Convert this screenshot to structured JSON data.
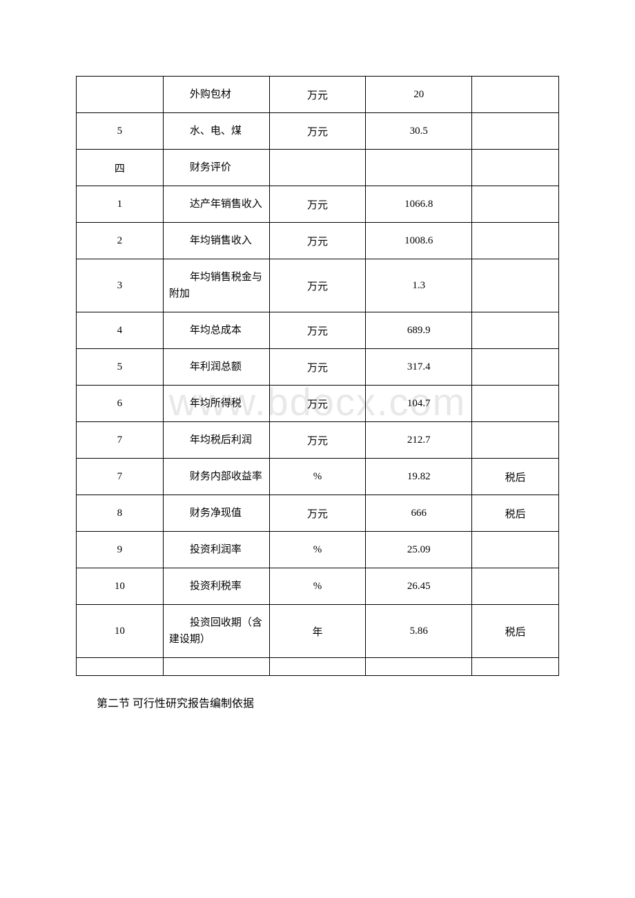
{
  "watermark": "www.bdocx.com",
  "table": {
    "rows": [
      {
        "c0": "",
        "c1": "外购包材",
        "c2": "万元",
        "c3": "20",
        "c4": ""
      },
      {
        "c0": "5",
        "c1": "水、电、煤",
        "c2": "万元",
        "c3": "30.5",
        "c4": ""
      },
      {
        "c0": "四",
        "c1": "财务评价",
        "c2": "",
        "c3": "",
        "c4": ""
      },
      {
        "c0": "1",
        "c1": "达产年销售收入",
        "c2": "万元",
        "c3": "1066.8",
        "c4": ""
      },
      {
        "c0": "2",
        "c1": "年均销售收入",
        "c2": "万元",
        "c3": "1008.6",
        "c4": ""
      },
      {
        "c0": "3",
        "c1": "年均销售税金与附加",
        "c2": "万元",
        "c3": "1.3",
        "c4": ""
      },
      {
        "c0": "4",
        "c1": "年均总成本",
        "c2": "万元",
        "c3": "689.9",
        "c4": ""
      },
      {
        "c0": "5",
        "c1": "年利润总额",
        "c2": "万元",
        "c3": "317.4",
        "c4": ""
      },
      {
        "c0": "6",
        "c1": "年均所得税",
        "c2": "万元",
        "c3": "104.7",
        "c4": ""
      },
      {
        "c0": "7",
        "c1": "年均税后利润",
        "c2": "万元",
        "c3": "212.7",
        "c4": ""
      },
      {
        "c0": "7",
        "c1": "财务内部收益率",
        "c2": "%",
        "c3": "19.82",
        "c4": "税后"
      },
      {
        "c0": "8",
        "c1": "财务净现值",
        "c2": "万元",
        "c3": "666",
        "c4": "税后"
      },
      {
        "c0": "9",
        "c1": "投资利润率",
        "c2": "%",
        "c3": "25.09",
        "c4": ""
      },
      {
        "c0": "10",
        "c1": "投资利税率",
        "c2": "%",
        "c3": "26.45",
        "c4": ""
      },
      {
        "c0": "10",
        "c1": "投资回收期（含建设期）",
        "c2": "年",
        "c3": "5.86",
        "c4": "税后"
      }
    ]
  },
  "footer": "第二节 可行性研究报告编制依据",
  "colors": {
    "border": "#000000",
    "text": "#000000",
    "background": "#ffffff",
    "watermark": "#e8e8e8"
  },
  "typography": {
    "body_font": "SimSun",
    "cell_fontsize": 15,
    "footer_fontsize": 16,
    "watermark_fontsize": 56
  }
}
